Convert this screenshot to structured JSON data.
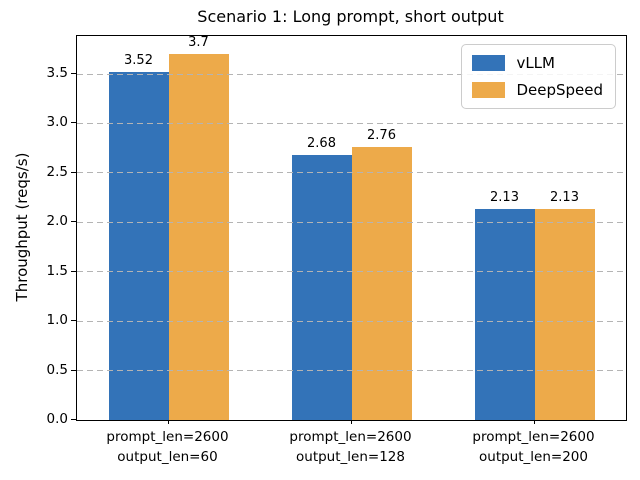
{
  "chart_data": {
    "type": "bar",
    "title": "Scenario 1: Long prompt, short output",
    "xlabel": "",
    "ylabel": "Throughput (reqs/s)",
    "categories": [
      "prompt_len=2600\noutput_len=60",
      "prompt_len=2600\noutput_len=128",
      "prompt_len=2600\noutput_len=200"
    ],
    "series": [
      {
        "name": "vLLM",
        "color": "#3373b8",
        "values": [
          3.52,
          2.68,
          2.13
        ]
      },
      {
        "name": "DeepSpeed",
        "color": "#edaa4a",
        "values": [
          3.7,
          2.76,
          2.13
        ]
      }
    ],
    "bar_value_labels": [
      [
        "3.52",
        "2.68",
        "2.13"
      ],
      [
        "3.7",
        "2.76",
        "2.13"
      ]
    ],
    "yticks": [
      0.0,
      0.5,
      1.0,
      1.5,
      2.0,
      2.5,
      3.0,
      3.5
    ],
    "ylim": [
      0,
      3.885
    ],
    "grid": "horizontal-dashed-above-bars",
    "grid_color": "#b4b4b4",
    "legend_position": "upper-right",
    "axis_color": "#000000",
    "text_color": "#000000",
    "background": "#ffffff"
  }
}
